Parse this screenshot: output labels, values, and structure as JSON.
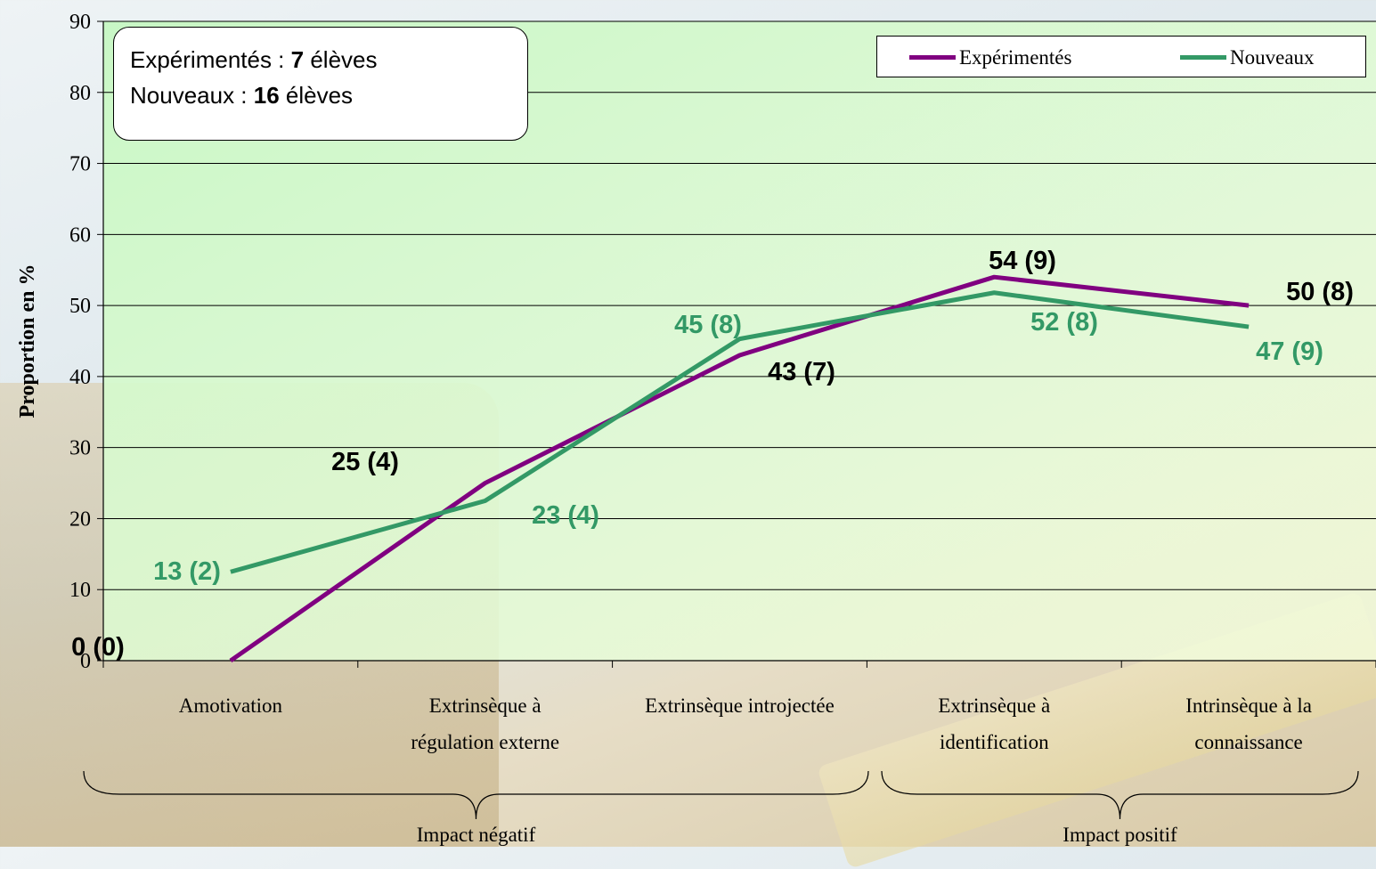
{
  "chart_data": {
    "type": "line",
    "categories": [
      [
        "Amotivation"
      ],
      [
        "Extrinsèque à",
        "régulation externe"
      ],
      [
        "Extrinsèque introjectée"
      ],
      [
        "Extrinsèque à",
        "identification"
      ],
      [
        "Intrinsèque à la",
        "connaissance"
      ]
    ],
    "series": [
      {
        "name": "Expérimentés",
        "values": [
          0,
          25,
          43,
          54,
          50
        ],
        "labels": [
          "0 (0)",
          "25 (4)",
          "43 (7)",
          "54 (9)",
          "50 (8)"
        ],
        "color": "#800080"
      },
      {
        "name": "Nouveaux",
        "values": [
          12.5,
          22.5,
          45.3,
          51.8,
          47
        ],
        "labels": [
          "13 (2)",
          "23 (4)",
          "45 (8)",
          "52 (8)",
          "47 (9)"
        ],
        "color": "#339966"
      }
    ],
    "ylabel": "Proportion en %",
    "ylim": [
      0,
      90
    ],
    "yticks": [
      0,
      10,
      20,
      30,
      40,
      50,
      60,
      70,
      80,
      90
    ],
    "grid": true,
    "legend": "top-right",
    "groups": [
      {
        "label": "Impact négatif",
        "from": 0,
        "to": 2
      },
      {
        "label": "Impact positif",
        "from": 3,
        "to": 4
      }
    ]
  },
  "info": {
    "line1_prefix": "Expérimentés : ",
    "line1_count": "7",
    "line1_suffix": " élèves",
    "line2_prefix": "Nouveaux : ",
    "line2_count": "16",
    "line2_suffix": " élèves"
  },
  "colors": {
    "plot_bg_top": "#ccffcc",
    "plot_bg_bottom": "#f4ffe6",
    "label_dark": "#000000",
    "label_green": "#339966"
  }
}
